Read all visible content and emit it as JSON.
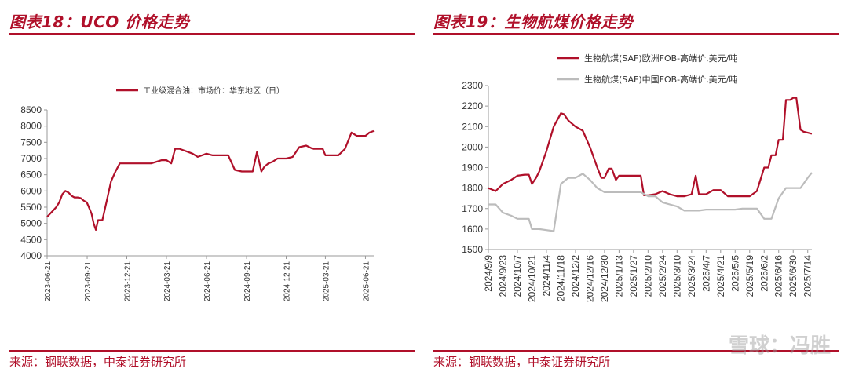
{
  "left": {
    "title": "图表18：UCO 价格走势",
    "source": "来源：钢联数据，中泰证券研究所"
  },
  "right": {
    "title": "图表19：生物航煤价格走势",
    "source": "来源：钢联数据，中泰证券研究所"
  },
  "watermark": "雪球：冯胜",
  "chart_data": [
    {
      "type": "line",
      "title": "",
      "ylim": [
        4000,
        8500
      ],
      "yticks": [
        4000,
        4500,
        5000,
        5500,
        6000,
        6500,
        7000,
        7500,
        8000,
        8500
      ],
      "xticks": [
        "2023-06-21",
        "2023-09-21",
        "2023-12-21",
        "2024-03-21",
        "2024-06-21",
        "2024-09-21",
        "2024-12-21",
        "2025-03-21",
        "2025-06-21"
      ],
      "legend_position": "top",
      "grid": false,
      "series": [
        {
          "name": "工业级混合油：市场价：华东地区（日）",
          "color": "#b0102a",
          "x": [
            "2023-06-21",
            "2023-06-28",
            "2023-07-05",
            "2023-07-12",
            "2023-07-19",
            "2023-07-26",
            "2023-08-02",
            "2023-08-09",
            "2023-08-16",
            "2023-08-23",
            "2023-08-30",
            "2023-09-06",
            "2023-09-13",
            "2023-09-20",
            "2023-09-25",
            "2023-10-01",
            "2023-10-06",
            "2023-10-11",
            "2023-10-16",
            "2023-10-21",
            "2023-10-26",
            "2023-11-05",
            "2023-11-15",
            "2023-11-25",
            "2023-12-05",
            "2023-12-15",
            "2023-12-21",
            "2024-01-15",
            "2024-02-15",
            "2024-03-10",
            "2024-03-21",
            "2024-04-01",
            "2024-04-10",
            "2024-04-20",
            "2024-05-10",
            "2024-05-20",
            "2024-06-01",
            "2024-06-21",
            "2024-07-05",
            "2024-07-20",
            "2024-08-10",
            "2024-08-25",
            "2024-09-10",
            "2024-09-21",
            "2024-10-05",
            "2024-10-15",
            "2024-10-25",
            "2024-11-01",
            "2024-11-10",
            "2024-11-20",
            "2024-12-01",
            "2024-12-21",
            "2025-01-05",
            "2025-01-20",
            "2025-02-05",
            "2025-02-20",
            "2025-03-05",
            "2025-03-15",
            "2025-03-21",
            "2025-04-05",
            "2025-04-20",
            "2025-05-05",
            "2025-05-20",
            "2025-06-01",
            "2025-06-10",
            "2025-06-21",
            "2025-06-30",
            "2025-07-10"
          ],
          "values": [
            5200,
            5300,
            5400,
            5500,
            5650,
            5900,
            6000,
            5950,
            5850,
            5800,
            5800,
            5780,
            5700,
            5650,
            5500,
            5300,
            5000,
            4800,
            5100,
            5100,
            5100,
            5700,
            6300,
            6600,
            6850,
            6850,
            6850,
            6850,
            6850,
            6950,
            6950,
            6850,
            7300,
            7300,
            7200,
            7150,
            7050,
            7150,
            7100,
            7100,
            7100,
            6650,
            6600,
            6600,
            6600,
            7200,
            6600,
            6750,
            6850,
            6900,
            7000,
            7000,
            7050,
            7350,
            7400,
            7300,
            7300,
            7300,
            7100,
            7100,
            7100,
            7300,
            7800,
            7700,
            7700,
            7700,
            7800,
            7850
          ]
        }
      ]
    },
    {
      "type": "line",
      "title": "",
      "ylim": [
        1500,
        2300
      ],
      "yticks": [
        1500,
        1600,
        1700,
        1800,
        1900,
        2000,
        2100,
        2200,
        2300
      ],
      "xticks": [
        "2024/9/9",
        "2024/9/23",
        "2024/10/7",
        "2024/10/21",
        "2024/11/4",
        "2024/11/18",
        "2024/12/2",
        "2024/12/16",
        "2024/12/30",
        "2025/1/13",
        "2025/1/27",
        "2025/2/10",
        "2025/2/24",
        "2025/3/10",
        "2025/3/24",
        "2025/4/7",
        "2025/4/21",
        "2025/5/5",
        "2025/5/19",
        "2025/6/2",
        "2025/6/16",
        "2025/6/30",
        "2025/7/14"
      ],
      "legend_position": "top-left",
      "grid": false,
      "series": [
        {
          "name": "生物航煤(SAF)欧洲FOB-高端价,美元/吨",
          "color": "#b0102a",
          "x": [
            "2024/9/9",
            "2024/9/16",
            "2024/9/23",
            "2024/10/1",
            "2024/10/7",
            "2024/10/14",
            "2024/10/18",
            "2024/10/21",
            "2024/10/25",
            "2024/10/28",
            "2024/11/4",
            "2024/11/11",
            "2024/11/18",
            "2024/11/21",
            "2024/11/25",
            "2024/12/2",
            "2024/12/9",
            "2024/12/16",
            "2024/12/23",
            "2024/12/27",
            "2024/12/30",
            "2025/1/3",
            "2025/1/6",
            "2025/1/10",
            "2025/1/13",
            "2025/1/20",
            "2025/1/27",
            "2025/2/3",
            "2025/2/6",
            "2025/2/10",
            "2025/2/17",
            "2025/2/24",
            "2025/3/3",
            "2025/3/10",
            "2025/3/17",
            "2025/3/24",
            "2025/3/28",
            "2025/3/31",
            "2025/4/7",
            "2025/4/14",
            "2025/4/21",
            "2025/4/28",
            "2025/5/5",
            "2025/5/12",
            "2025/5/19",
            "2025/5/26",
            "2025/6/2",
            "2025/6/6",
            "2025/6/9",
            "2025/6/13",
            "2025/6/16",
            "2025/6/20",
            "2025/6/23",
            "2025/6/27",
            "2025/6/30",
            "2025/7/3",
            "2025/7/7",
            "2025/7/10",
            "2025/7/14",
            "2025/7/18"
          ],
          "values": [
            1800,
            1785,
            1820,
            1840,
            1860,
            1865,
            1865,
            1820,
            1850,
            1880,
            1980,
            2100,
            2165,
            2160,
            2130,
            2100,
            2080,
            2000,
            1900,
            1850,
            1850,
            1895,
            1895,
            1840,
            1860,
            1860,
            1860,
            1860,
            1765,
            1765,
            1770,
            1785,
            1770,
            1760,
            1760,
            1770,
            1860,
            1770,
            1770,
            1790,
            1790,
            1760,
            1760,
            1760,
            1760,
            1785,
            1900,
            1900,
            1960,
            1960,
            2035,
            2035,
            2230,
            2230,
            2240,
            2240,
            2085,
            2075,
            2070,
            2065
          ]
        },
        {
          "name": "生物航煤(SAF)中国FOB-高端价,美元/吨",
          "color": "#bcbcbc",
          "x": [
            "2024/9/9",
            "2024/9/16",
            "2024/9/23",
            "2024/10/1",
            "2024/10/7",
            "2024/10/14",
            "2024/10/18",
            "2024/10/21",
            "2024/10/28",
            "2024/11/4",
            "2024/11/11",
            "2024/11/18",
            "2024/11/25",
            "2024/12/2",
            "2024/12/9",
            "2024/12/16",
            "2024/12/23",
            "2024/12/30",
            "2025/1/6",
            "2025/1/13",
            "2025/1/20",
            "2025/1/27",
            "2025/2/3",
            "2025/2/10",
            "2025/2/17",
            "2025/2/24",
            "2025/3/3",
            "2025/3/10",
            "2025/3/17",
            "2025/3/24",
            "2025/3/31",
            "2025/4/7",
            "2025/4/14",
            "2025/4/21",
            "2025/4/28",
            "2025/5/5",
            "2025/5/12",
            "2025/5/19",
            "2025/5/26",
            "2025/6/2",
            "2025/6/9",
            "2025/6/16",
            "2025/6/23",
            "2025/6/30",
            "2025/7/7",
            "2025/7/14",
            "2025/7/18"
          ],
          "values": [
            1720,
            1720,
            1680,
            1665,
            1650,
            1650,
            1650,
            1600,
            1600,
            1595,
            1590,
            1820,
            1850,
            1850,
            1870,
            1840,
            1800,
            1780,
            1780,
            1780,
            1780,
            1780,
            1780,
            1760,
            1760,
            1730,
            1720,
            1710,
            1690,
            1690,
            1690,
            1695,
            1695,
            1695,
            1695,
            1695,
            1700,
            1700,
            1700,
            1650,
            1650,
            1750,
            1800,
            1800,
            1800,
            1850,
            1875
          ]
        }
      ]
    }
  ]
}
